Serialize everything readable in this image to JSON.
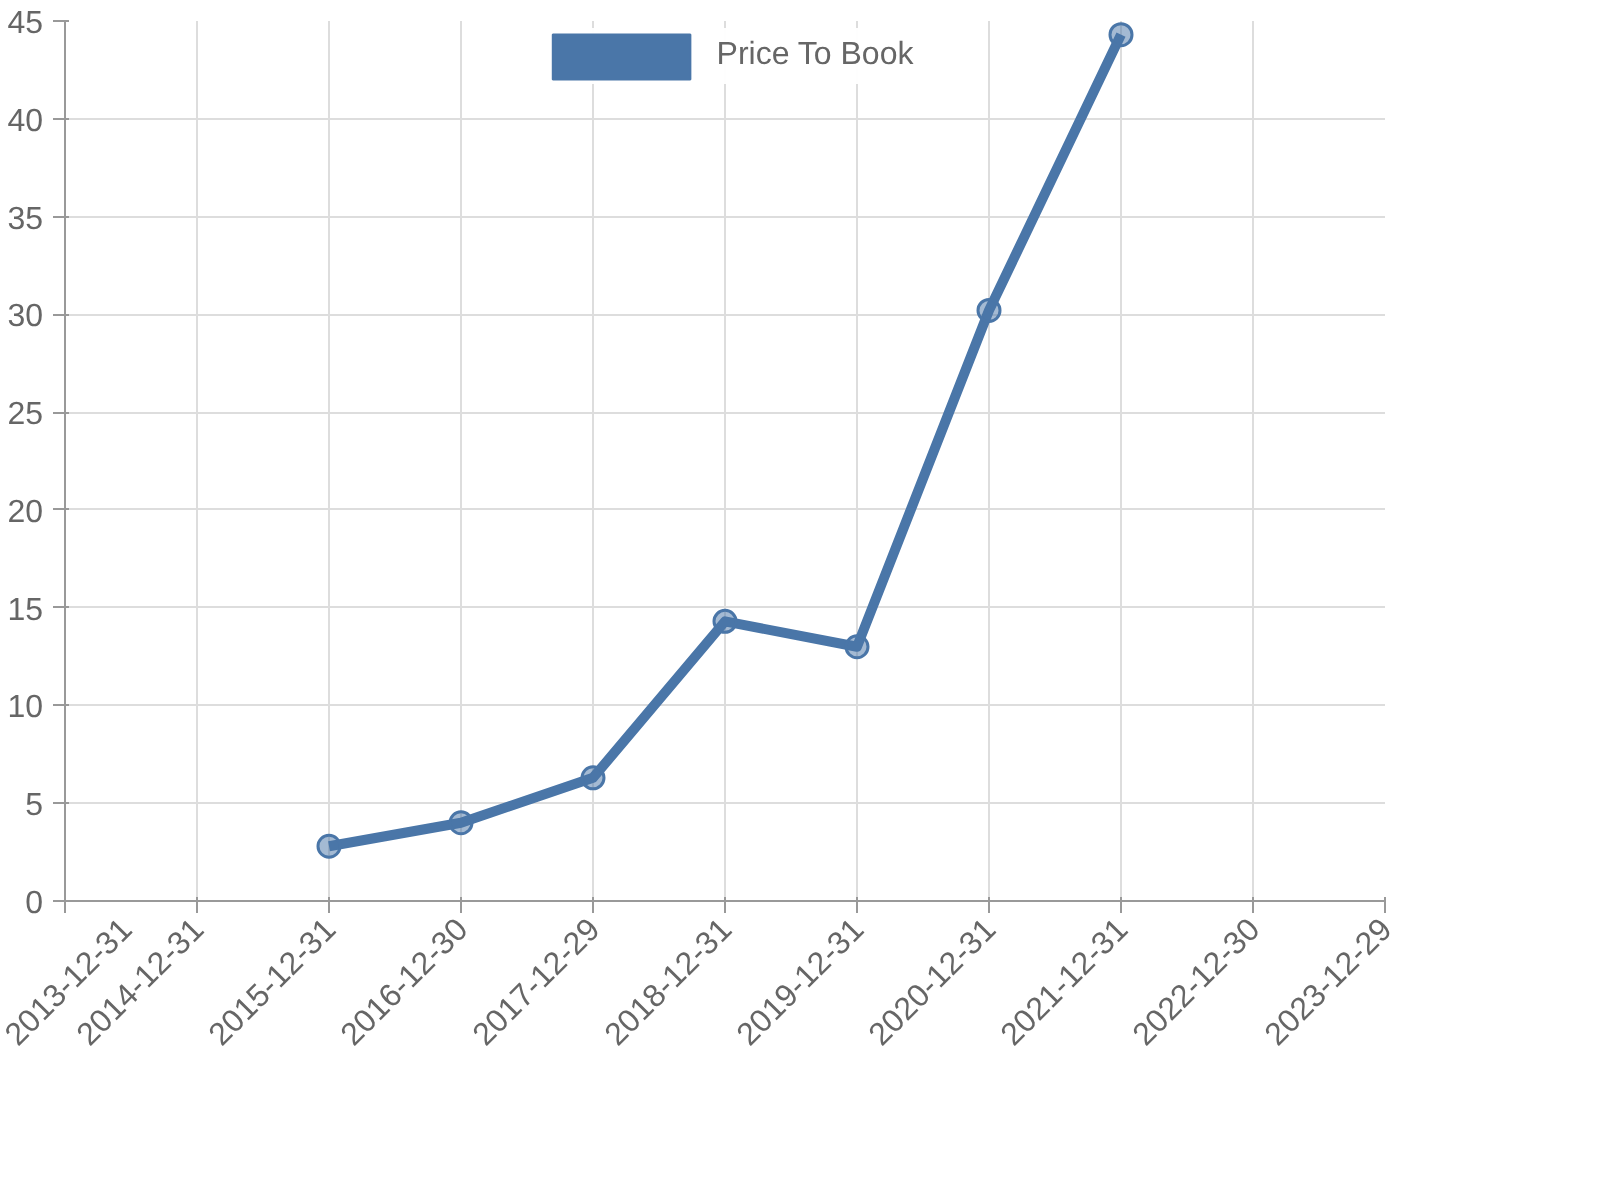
{
  "chart_data": {
    "type": "line",
    "categories": [
      "2013-12-31",
      "2014-12-31",
      "2015-12-31",
      "2016-12-30",
      "2017-12-29",
      "2018-12-31",
      "2019-12-31",
      "2020-12-31",
      "2021-12-31",
      "2022-12-30",
      "2023-12-29"
    ],
    "series": [
      {
        "name": "Price To Book",
        "color": "#4a76a8",
        "values": [
          null,
          null,
          2.8,
          4.0,
          6.3,
          14.3,
          13.0,
          30.2,
          44.3,
          null,
          null
        ]
      }
    ],
    "ylim": [
      0,
      45
    ],
    "yticks": [
      0,
      5,
      10,
      15,
      20,
      25,
      30,
      35,
      40,
      45
    ],
    "grid": true,
    "legend": "top",
    "marker": "circle",
    "line_style": "solid"
  }
}
